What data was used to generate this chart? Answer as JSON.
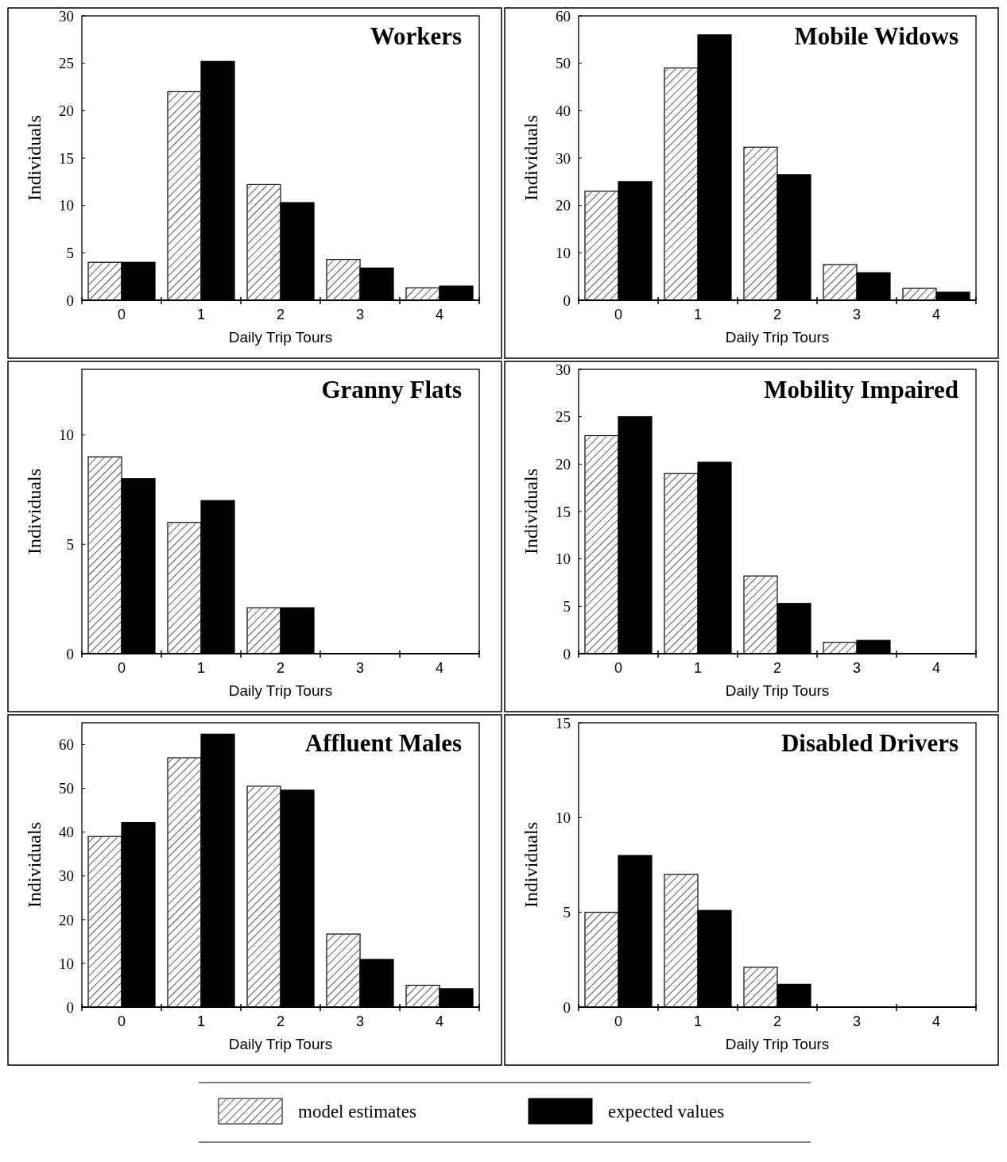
{
  "chart_data": [
    {
      "type": "bar",
      "title": "Workers",
      "xlabel": "Daily Trip Tours",
      "ylabel": "Individuals",
      "categories": [
        "0",
        "1",
        "2",
        "3",
        "4"
      ],
      "ylim": [
        0,
        30
      ],
      "yticks": [
        0,
        5,
        10,
        15,
        20,
        25,
        30
      ],
      "legend": "bottom",
      "series": [
        {
          "name": "model estimates",
          "color": "#ffffff",
          "values": [
            4,
            22,
            12.2,
            4.3,
            1.3
          ]
        },
        {
          "name": "expected values",
          "color": "#000000",
          "values": [
            4,
            25.2,
            10.3,
            3.4,
            1.5
          ]
        }
      ]
    },
    {
      "type": "bar",
      "title": "Mobile Widows",
      "xlabel": "Daily Trip Tours",
      "ylabel": "Individuals",
      "categories": [
        "0",
        "1",
        "2",
        "3",
        "4"
      ],
      "ylim": [
        0,
        60
      ],
      "yticks": [
        0,
        10,
        20,
        30,
        40,
        50,
        60
      ],
      "series": [
        {
          "color": "#ffffff",
          "values": [
            23,
            49,
            32.3,
            7.5,
            2.5
          ]
        },
        {
          "color": "#000000",
          "values": [
            25,
            56,
            26.5,
            5.8,
            1.7
          ]
        }
      ]
    },
    {
      "type": "bar",
      "title": "Granny Flats",
      "xlabel": "Daily Trip Tours",
      "ylabel": "Individuals",
      "categories": [
        "0",
        "1",
        "2",
        "3",
        "4"
      ],
      "ylim": [
        0,
        13
      ],
      "yticks": [
        0,
        5,
        10
      ],
      "series": [
        {
          "color": "#ffffff",
          "values": [
            9,
            6,
            2.1,
            0,
            0
          ]
        },
        {
          "color": "#000000",
          "values": [
            8,
            7,
            2.1,
            0,
            0
          ]
        }
      ]
    },
    {
      "type": "bar",
      "title": "Mobility Impaired",
      "xlabel": "Daily Trip Tours",
      "ylabel": "Individuals",
      "categories": [
        "0",
        "1",
        "2",
        "3",
        "4"
      ],
      "ylim": [
        0,
        30
      ],
      "yticks": [
        0,
        5,
        10,
        15,
        20,
        25,
        30
      ],
      "series": [
        {
          "color": "#ffffff",
          "values": [
            23,
            19,
            8.2,
            1.2,
            0
          ]
        },
        {
          "color": "#000000",
          "values": [
            25,
            20.2,
            5.3,
            1.4,
            0
          ]
        }
      ]
    },
    {
      "type": "bar",
      "title": "Affluent Males",
      "xlabel": "Daily Trip Tours",
      "ylabel": "Individuals",
      "categories": [
        "0",
        "1",
        "2",
        "3",
        "4"
      ],
      "ylim": [
        0,
        65
      ],
      "yticks": [
        0,
        10,
        20,
        30,
        40,
        50,
        60
      ],
      "series": [
        {
          "color": "#ffffff",
          "values": [
            39,
            57,
            50.5,
            16.7,
            5
          ]
        },
        {
          "color": "#000000",
          "values": [
            42.2,
            62.4,
            49.6,
            10.9,
            4.2
          ]
        }
      ]
    },
    {
      "type": "bar",
      "title": "Disabled Drivers",
      "xlabel": "Daily Trip Tours",
      "ylabel": "Individuals",
      "categories": [
        "0",
        "1",
        "2",
        "3",
        "4"
      ],
      "ylim": [
        0,
        15
      ],
      "yticks": [
        0,
        5,
        10,
        15
      ],
      "series": [
        {
          "color": "#ffffff",
          "values": [
            5,
            7,
            2.1,
            0,
            0
          ]
        },
        {
          "color": "#000000",
          "values": [
            8,
            5.1,
            1.2,
            0,
            0
          ]
        }
      ]
    }
  ]
}
